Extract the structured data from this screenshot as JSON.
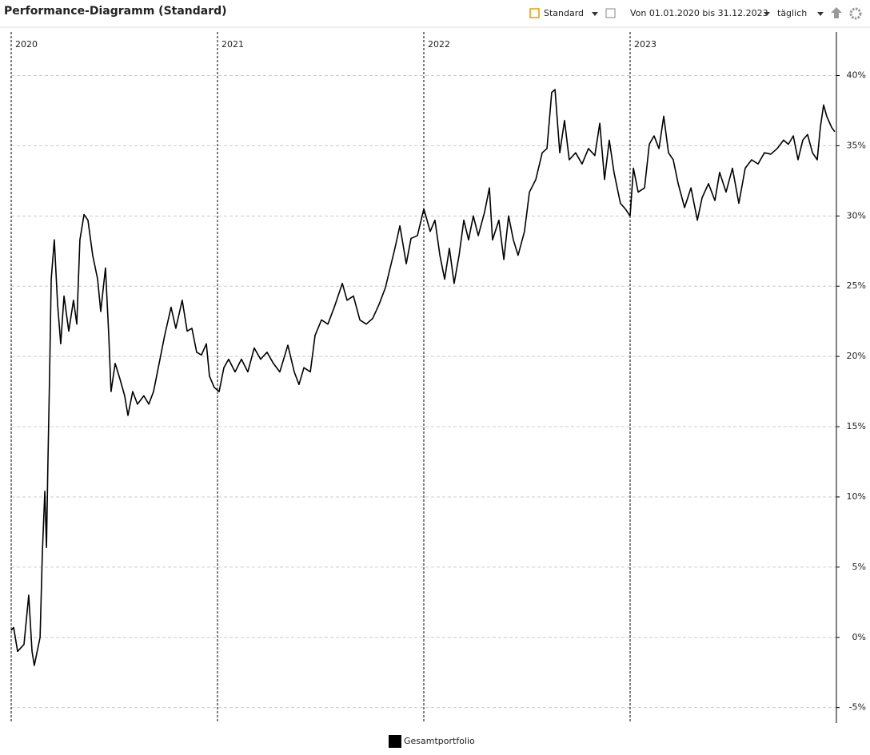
{
  "toolbar": {
    "title": "Performance-Diagramm (Standard)",
    "view": "Standard",
    "period": "Von 01.01.2020 bis 31.12.2023",
    "interval": "täglich"
  },
  "chart_data": {
    "type": "line",
    "x": [
      2020.0,
      2020.012,
      2020.031,
      2020.062,
      2020.085,
      2020.101,
      2020.112,
      2020.14,
      2020.151,
      2020.163,
      2020.171,
      2020.178,
      2020.186,
      2020.194,
      2020.209,
      2020.225,
      2020.24,
      2020.256,
      2020.279,
      2020.302,
      2020.318,
      2020.333,
      2020.353,
      2020.372,
      2020.395,
      2020.419,
      2020.434,
      2020.457,
      2020.473,
      2020.484,
      2020.504,
      2020.527,
      2020.55,
      2020.566,
      2020.589,
      2020.612,
      2020.643,
      2020.667,
      2020.69,
      2020.713,
      2020.744,
      2020.775,
      2020.798,
      2020.829,
      2020.853,
      2020.876,
      2020.899,
      2020.922,
      2020.946,
      2020.961,
      2020.984,
      2021.008,
      2021.031,
      2021.054,
      2021.085,
      2021.116,
      2021.147,
      2021.178,
      2021.209,
      2021.24,
      2021.271,
      2021.302,
      2021.341,
      2021.372,
      2021.395,
      2021.419,
      2021.45,
      2021.473,
      2021.504,
      2021.535,
      2021.566,
      2021.605,
      2021.628,
      2021.659,
      2021.69,
      2021.721,
      2021.752,
      2021.783,
      2021.814,
      2021.837,
      2021.86,
      2021.884,
      2021.915,
      2021.938,
      2021.969,
      2022.0,
      2022.031,
      2022.054,
      2022.078,
      2022.101,
      2022.124,
      2022.147,
      2022.171,
      2022.194,
      2022.217,
      2022.24,
      2022.264,
      2022.295,
      2022.318,
      2022.333,
      2022.364,
      2022.388,
      2022.411,
      2022.434,
      2022.457,
      2022.488,
      2022.512,
      2022.543,
      2022.574,
      2022.597,
      2022.62,
      2022.636,
      2022.659,
      2022.682,
      2022.705,
      2022.736,
      2022.767,
      2022.798,
      2022.829,
      2022.853,
      2022.876,
      2022.899,
      2022.922,
      2022.953,
      2022.977,
      2023.0,
      2023.016,
      2023.039,
      2023.07,
      2023.093,
      2023.116,
      2023.14,
      2023.163,
      2023.186,
      2023.209,
      2023.233,
      2023.264,
      2023.295,
      2023.326,
      2023.349,
      2023.38,
      2023.411,
      2023.434,
      2023.465,
      2023.496,
      2023.527,
      2023.558,
      2023.589,
      2023.62,
      2023.651,
      2023.682,
      2023.713,
      2023.744,
      2023.767,
      2023.791,
      2023.814,
      2023.837,
      2023.86,
      2023.884,
      2023.907,
      2023.922,
      2023.938,
      2023.953,
      2023.977,
      2023.992
    ],
    "series": [
      {
        "name": "Gesamtportfolio",
        "color": "#000000",
        "values": [
          0.5,
          0.7,
          -1.0,
          -0.5,
          3.0,
          -1.0,
          -2.0,
          0,
          6.0,
          10.4,
          6.4,
          12.4,
          18.6,
          25.5,
          28.3,
          23.7,
          20.9,
          24.3,
          21.8,
          24.0,
          22.3,
          28.3,
          30.1,
          29.7,
          27.2,
          25.5,
          23.2,
          26.3,
          21.5,
          17.5,
          19.5,
          18.4,
          17.2,
          15.8,
          17.5,
          16.6,
          17.2,
          16.6,
          17.5,
          19.2,
          21.5,
          23.5,
          22.0,
          24.0,
          21.8,
          22.0,
          20.3,
          20.1,
          20.9,
          18.6,
          17.8,
          17.5,
          19.2,
          19.8,
          18.9,
          19.8,
          18.9,
          20.6,
          19.8,
          20.3,
          19.5,
          18.9,
          20.8,
          18.9,
          18.0,
          19.2,
          18.9,
          21.5,
          22.6,
          22.3,
          23.5,
          25.2,
          24.0,
          24.3,
          22.6,
          22.3,
          22.7,
          23.7,
          24.9,
          26.3,
          27.7,
          29.3,
          26.6,
          28.4,
          28.6,
          30.5,
          28.9,
          29.7,
          27.2,
          25.5,
          27.7,
          25.2,
          27.2,
          29.7,
          28.3,
          30.0,
          28.6,
          30.3,
          32.0,
          28.3,
          29.7,
          26.9,
          30.0,
          28.3,
          27.2,
          28.9,
          31.7,
          32.6,
          34.5,
          34.8,
          38.8,
          39.0,
          34.5,
          36.8,
          34.0,
          34.5,
          33.7,
          34.8,
          34.3,
          36.6,
          32.6,
          35.4,
          33.1,
          30.9,
          30.5,
          30.0,
          33.4,
          31.7,
          32.0,
          35.1,
          35.7,
          34.8,
          37.1,
          34.5,
          34.0,
          32.3,
          30.6,
          32.0,
          29.7,
          31.3,
          32.3,
          31.1,
          33.1,
          31.7,
          33.4,
          30.9,
          33.4,
          34.0,
          33.7,
          34.5,
          34.4,
          34.8,
          35.4,
          35.1,
          35.7,
          34.0,
          35.4,
          35.8,
          34.5,
          34.0,
          36.3,
          37.9,
          37.1,
          36.3,
          36.0
        ]
      }
    ],
    "xlim": [
      2020,
      2024
    ],
    "xticks": [
      2020,
      2021,
      2022,
      2023
    ],
    "ylim": [
      -6.1,
      43.1
    ],
    "yticks": [
      {
        "value": -5,
        "label": "-5%"
      },
      {
        "value": 0,
        "label": "0%"
      },
      {
        "value": 5,
        "label": "5%"
      },
      {
        "value": 10,
        "label": "10%"
      },
      {
        "value": 15,
        "label": "15%"
      },
      {
        "value": 20,
        "label": "20%"
      },
      {
        "value": 25,
        "label": "25%"
      },
      {
        "value": 30,
        "label": "30%"
      },
      {
        "value": 35,
        "label": "35%"
      },
      {
        "value": 40,
        "label": "40%"
      }
    ],
    "grid": true
  }
}
